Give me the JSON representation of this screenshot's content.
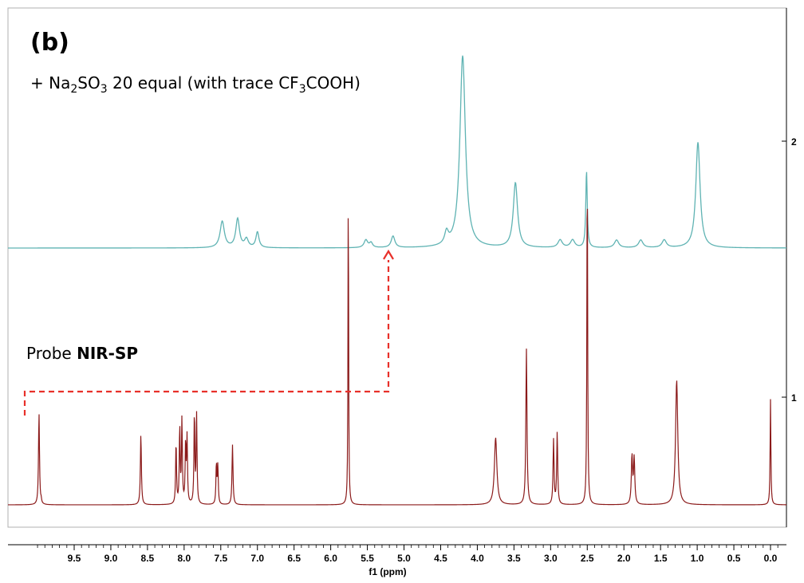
{
  "panel_label": "(b)",
  "condition_label": {
    "pre": "+ Na",
    "sub1": "2",
    "mid1": "SO",
    "sub2": "3",
    "mid2": " 20 equal (with trace CF",
    "sub3": "3",
    "post": "COOH)"
  },
  "probe_label": {
    "pre": "Probe ",
    "bold": "NIR-SP"
  },
  "colors": {
    "top_trace": "#5fb3b3",
    "bottom_trace": "#8b1a1a",
    "arrow": "#e8302a",
    "frame": "#b0b0b0",
    "axis": "#000000"
  },
  "chart_data": {
    "type": "line",
    "xlabel": "f1 (ppm)",
    "xlim": [
      10.1,
      -0.2
    ],
    "x_reversed": true,
    "x_ticks": [
      "9.5",
      "9.0",
      "8.5",
      "8.0",
      "7.5",
      "7.0",
      "6.5",
      "6.0",
      "5.5",
      "5.0",
      "4.5",
      "4.0",
      "3.5",
      "3.0",
      "2.5",
      "2.0",
      "1.5",
      "1.0",
      "0.5",
      "0.0"
    ],
    "right_axis_labels": [
      "2",
      "1"
    ],
    "grid": false,
    "series": [
      {
        "name": "+ Na2SO3 20 equal (with trace CF3COOH)",
        "color": "#5fb3b3",
        "peaks": [
          {
            "x": 7.48,
            "h": 0.11,
            "w": 0.035
          },
          {
            "x": 7.27,
            "h": 0.12,
            "w": 0.03
          },
          {
            "x": 7.15,
            "h": 0.035,
            "w": 0.03
          },
          {
            "x": 7.0,
            "h": 0.065,
            "w": 0.025
          },
          {
            "x": 5.52,
            "h": 0.032,
            "w": 0.03
          },
          {
            "x": 5.45,
            "h": 0.02,
            "w": 0.025
          },
          {
            "x": 5.15,
            "h": 0.048,
            "w": 0.03
          },
          {
            "x": 4.42,
            "h": 0.05,
            "w": 0.03
          },
          {
            "x": 4.2,
            "h": 0.8,
            "w": 0.045
          },
          {
            "x": 3.48,
            "h": 0.27,
            "w": 0.035
          },
          {
            "x": 2.87,
            "h": 0.032,
            "w": 0.035
          },
          {
            "x": 2.7,
            "h": 0.032,
            "w": 0.035
          },
          {
            "x": 2.51,
            "h": 0.32,
            "w": 0.012
          },
          {
            "x": 2.1,
            "h": 0.032,
            "w": 0.035
          },
          {
            "x": 1.77,
            "h": 0.032,
            "w": 0.035
          },
          {
            "x": 1.45,
            "h": 0.032,
            "w": 0.035
          },
          {
            "x": 0.99,
            "h": 0.44,
            "w": 0.035
          }
        ]
      },
      {
        "name": "Probe NIR-SP",
        "color": "#8b1a1a",
        "peaks": [
          {
            "x": 9.98,
            "h": 0.385,
            "w": 0.008
          },
          {
            "x": 9.95,
            "h": 0.014,
            "w": 0.005
          },
          {
            "x": 8.59,
            "h": 0.295,
            "w": 0.008
          },
          {
            "x": 8.11,
            "h": 0.26,
            "w": 0.007
          },
          {
            "x": 8.06,
            "h": 0.32,
            "w": 0.007
          },
          {
            "x": 8.03,
            "h": 0.35,
            "w": 0.007
          },
          {
            "x": 7.98,
            "h": 0.25,
            "w": 0.007
          },
          {
            "x": 7.96,
            "h": 0.27,
            "w": 0.007
          },
          {
            "x": 7.86,
            "h": 0.38,
            "w": 0.007
          },
          {
            "x": 7.83,
            "h": 0.37,
            "w": 0.007
          },
          {
            "x": 7.56,
            "h": 0.17,
            "w": 0.007
          },
          {
            "x": 7.54,
            "h": 0.16,
            "w": 0.007
          },
          {
            "x": 7.34,
            "h": 0.25,
            "w": 0.008
          },
          {
            "x": 5.76,
            "h": 1.39,
            "w": 0.005
          },
          {
            "x": 3.75,
            "h": 0.28,
            "w": 0.02
          },
          {
            "x": 3.33,
            "h": 0.65,
            "w": 0.009
          },
          {
            "x": 2.96,
            "h": 0.27,
            "w": 0.008
          },
          {
            "x": 2.91,
            "h": 0.3,
            "w": 0.008
          },
          {
            "x": 2.5,
            "h": 1.46,
            "w": 0.006
          },
          {
            "x": 1.89,
            "h": 0.2,
            "w": 0.01
          },
          {
            "x": 1.86,
            "h": 0.19,
            "w": 0.01
          },
          {
            "x": 1.28,
            "h": 0.52,
            "w": 0.018
          },
          {
            "x": 0.0,
            "h": 0.44,
            "w": 0.006
          }
        ]
      }
    ]
  }
}
